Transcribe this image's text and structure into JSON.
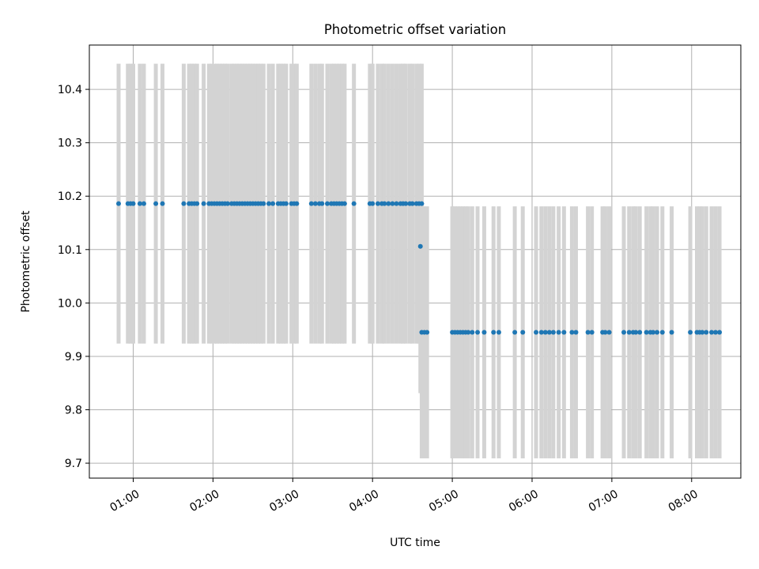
{
  "chart_data": {
    "type": "scatter",
    "title": "Photometric offset variation",
    "xlabel": "UTC time",
    "ylabel": "Photometric offset",
    "x_axis_type": "time",
    "x_range": [
      "00:27",
      "08:37"
    ],
    "ylim": [
      9.672,
      10.483
    ],
    "grid": true,
    "legend": "none",
    "x_ticks": [
      "01:00",
      "02:00",
      "03:00",
      "04:00",
      "05:00",
      "06:00",
      "07:00",
      "08:00"
    ],
    "y_ticks": [
      9.7,
      9.8,
      9.9,
      10.0,
      10.1,
      10.2,
      10.3,
      10.4
    ],
    "marker_color": "#1f77b4",
    "errorbar_color": "#d3d3d3",
    "series": [
      {
        "x": [
          "00:49",
          "00:56",
          "00:58",
          "01:00",
          "01:05",
          "01:08",
          "01:17",
          "01:22",
          "01:38",
          "01:42",
          "01:44",
          "01:46",
          "01:48",
          "01:53",
          "01:57",
          "01:59",
          "02:01",
          "02:03",
          "02:05",
          "02:07",
          "02:09",
          "02:11",
          "02:14",
          "02:16",
          "02:18",
          "02:20",
          "02:22",
          "02:24",
          "02:26",
          "02:28",
          "02:30",
          "02:32",
          "02:34",
          "02:36",
          "02:38",
          "02:42",
          "02:45",
          "02:49",
          "02:51",
          "02:53",
          "02:55",
          "02:59",
          "03:01",
          "03:03",
          "03:14",
          "03:17",
          "03:20",
          "03:22",
          "03:26",
          "03:29",
          "03:31",
          "03:33",
          "03:35",
          "03:37",
          "03:39",
          "03:46",
          "03:58",
          "04:00",
          "04:04",
          "04:07",
          "04:09",
          "04:12",
          "04:15",
          "04:18",
          "04:21",
          "04:23",
          "04:25",
          "04:28",
          "04:30",
          "04:33",
          "04:35",
          "04:37"
        ],
        "y": [
          10.186,
          10.186,
          10.186,
          10.186,
          10.186,
          10.186,
          10.186,
          10.186,
          10.186,
          10.186,
          10.186,
          10.186,
          10.186,
          10.186,
          10.186,
          10.186,
          10.186,
          10.186,
          10.186,
          10.186,
          10.186,
          10.186,
          10.186,
          10.186,
          10.186,
          10.186,
          10.186,
          10.186,
          10.186,
          10.186,
          10.186,
          10.186,
          10.186,
          10.186,
          10.186,
          10.186,
          10.186,
          10.186,
          10.186,
          10.186,
          10.186,
          10.186,
          10.186,
          10.186,
          10.186,
          10.186,
          10.186,
          10.186,
          10.186,
          10.186,
          10.186,
          10.186,
          10.186,
          10.186,
          10.186,
          10.186,
          10.186,
          10.186,
          10.186,
          10.186,
          10.186,
          10.186,
          10.186,
          10.186,
          10.186,
          10.186,
          10.186,
          10.186,
          10.186,
          10.186,
          10.186,
          10.186
        ],
        "yerr": 0.262
      },
      {
        "x": [
          "04:36"
        ],
        "y": [
          10.106
        ],
        "yerr": 0.275
      },
      {
        "x": [
          "04:37",
          "04:39",
          "04:41",
          "05:00",
          "05:02",
          "05:04",
          "05:06",
          "05:08",
          "05:10",
          "05:12",
          "05:15",
          "05:19",
          "05:24",
          "05:31",
          "05:35",
          "05:47",
          "05:53",
          "06:03",
          "06:07",
          "06:10",
          "06:13",
          "06:16",
          "06:20",
          "06:24",
          "06:30",
          "06:33",
          "06:42",
          "06:45",
          "06:53",
          "06:55",
          "06:58",
          "07:09",
          "07:13",
          "07:16",
          "07:18",
          "07:21",
          "07:26",
          "07:29",
          "07:31",
          "07:34",
          "07:38",
          "07:45",
          "07:59",
          "08:04",
          "08:06",
          "08:08",
          "08:11",
          "08:15",
          "08:18",
          "08:21"
        ],
        "y": [
          9.945,
          9.945,
          9.945,
          9.945,
          9.945,
          9.945,
          9.945,
          9.945,
          9.945,
          9.945,
          9.945,
          9.945,
          9.945,
          9.945,
          9.945,
          9.945,
          9.945,
          9.945,
          9.945,
          9.945,
          9.945,
          9.945,
          9.945,
          9.945,
          9.945,
          9.945,
          9.945,
          9.945,
          9.945,
          9.945,
          9.945,
          9.945,
          9.945,
          9.945,
          9.945,
          9.945,
          9.945,
          9.945,
          9.945,
          9.945,
          9.945,
          9.945,
          9.945,
          9.945,
          9.945,
          9.945,
          9.945,
          9.945,
          9.945,
          9.945
        ],
        "yerr": 0.236
      }
    ]
  }
}
